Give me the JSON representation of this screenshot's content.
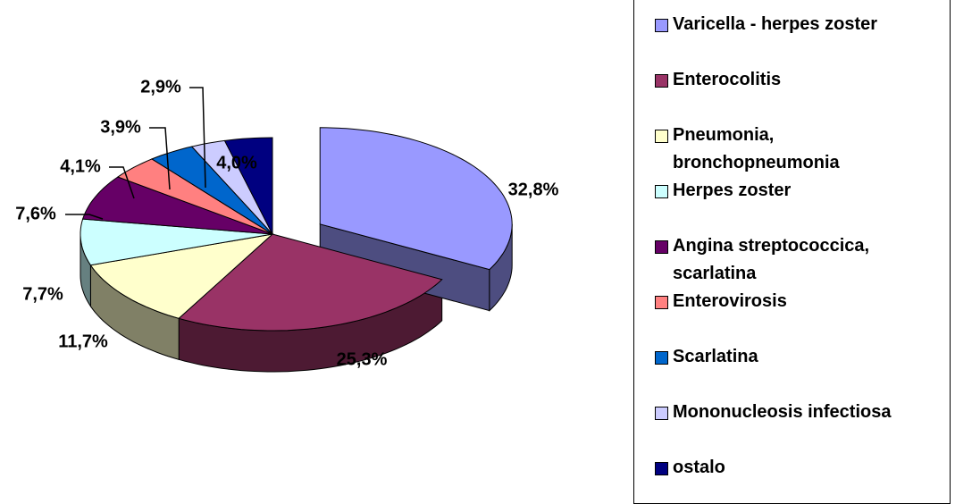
{
  "chart_data": {
    "type": "pie",
    "categories": [
      "Varicella - herpes zoster",
      "Enterocolitis",
      "Pneumonia, bronchopneumonia",
      "Herpes zoster",
      "Angina streptococcica, scarlatina",
      "Enterovirosis",
      "Scarlatina",
      "Mononucleosis infectiosa",
      "ostalo"
    ],
    "values": [
      32.8,
      25.3,
      11.7,
      7.7,
      7.6,
      4.1,
      3.9,
      2.9,
      4.0
    ],
    "value_labels": [
      "32,8%",
      "25,3%",
      "11,7%",
      "7,7%",
      "7,6%",
      "4,1%",
      "3,9%",
      "2,9%",
      "4,0%"
    ],
    "colors": [
      "#9999ff",
      "#993366",
      "#ffffcc",
      "#ccffff",
      "#660066",
      "#ff8080",
      "#0066cc",
      "#ccccff",
      "#000080"
    ],
    "legend": "right"
  }
}
